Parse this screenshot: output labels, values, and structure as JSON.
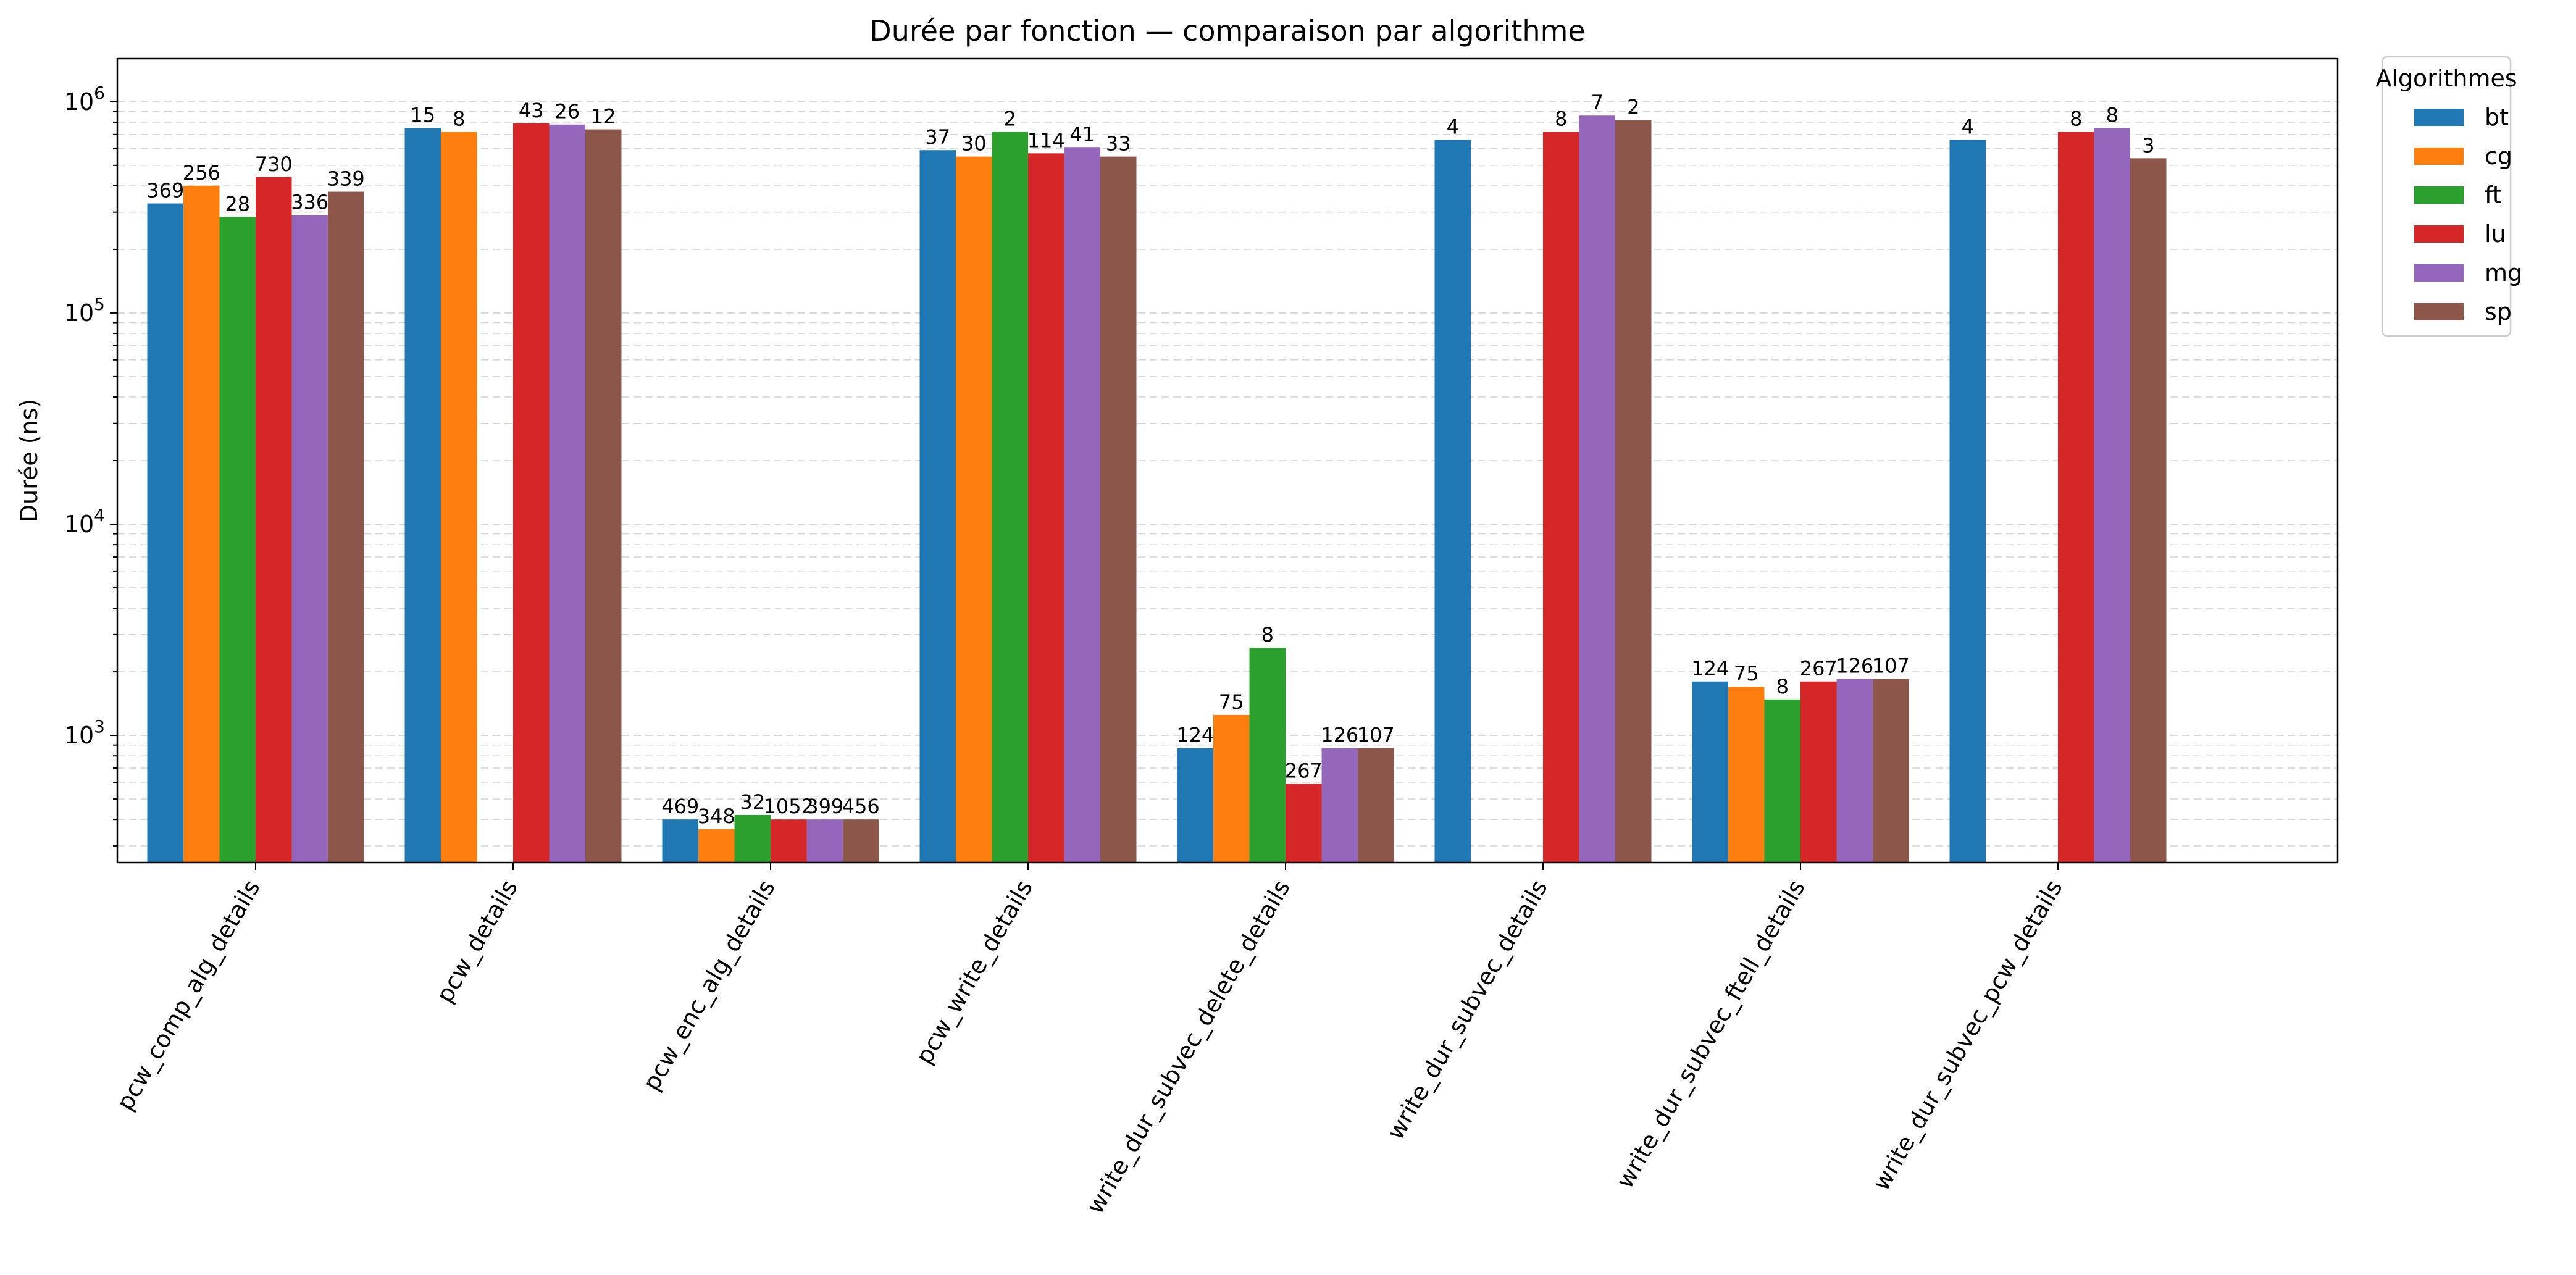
{
  "chart_data": {
    "type": "bar",
    "title": "Durée par fonction — comparaison par algorithme",
    "xlabel": "",
    "ylabel": "Durée (ns)",
    "yscale": "log",
    "ylim": [
      250,
      1600000
    ],
    "grid": "y-major-and-minor-dashed",
    "legend": {
      "title": "Algorithmes",
      "placement": "outside-top-right"
    },
    "yticks": [
      {
        "value": 1000,
        "base": "10",
        "exp": "3"
      },
      {
        "value": 10000,
        "base": "10",
        "exp": "4"
      },
      {
        "value": 100000,
        "base": "10",
        "exp": "5"
      },
      {
        "value": 1000000,
        "base": "10",
        "exp": "6"
      }
    ],
    "categories": [
      "pcw_comp_alg_details",
      "pcw_details",
      "pcw_enc_alg_details",
      "pcw_write_details",
      "write_dur_subvec_delete_details",
      "write_dur_subvec_details",
      "write_dur_subvec_ftell_details",
      "write_dur_subvec_pcw_details"
    ],
    "series": [
      {
        "name": "bt",
        "color": "#1f77b4",
        "values": [
          330000,
          750000,
          400,
          590000,
          870,
          660000,
          1800,
          660000
        ],
        "labels": [
          "369",
          "15",
          "469",
          "37",
          "124",
          "4",
          "124",
          "4"
        ]
      },
      {
        "name": "cg",
        "color": "#ff7f0e",
        "values": [
          400000,
          720000,
          360,
          550000,
          1250,
          null,
          1700,
          null
        ],
        "labels": [
          "256",
          "8",
          "348",
          "30",
          "75",
          "",
          "75",
          ""
        ]
      },
      {
        "name": "ft",
        "color": "#2ca02c",
        "values": [
          285000,
          null,
          420,
          720000,
          2600,
          null,
          1480,
          null
        ],
        "labels": [
          "28",
          "",
          "32",
          "2",
          "8",
          "",
          "8",
          ""
        ]
      },
      {
        "name": "lu",
        "color": "#d62728",
        "values": [
          440000,
          790000,
          400,
          570000,
          590,
          720000,
          1800,
          720000
        ],
        "labels": [
          "730",
          "43",
          "1052",
          "114",
          "267",
          "8",
          "267",
          "8"
        ]
      },
      {
        "name": "mg",
        "color": "#9467bd",
        "values": [
          290000,
          780000,
          400,
          610000,
          870,
          860000,
          1850,
          750000
        ],
        "labels": [
          "336",
          "26",
          "399",
          "41",
          "126",
          "7",
          "126",
          "8"
        ]
      },
      {
        "name": "sp",
        "color": "#8c564b",
        "values": [
          375000,
          740000,
          400,
          550000,
          870,
          820000,
          1850,
          540000
        ],
        "labels": [
          "339",
          "12",
          "456",
          "33",
          "107",
          "2",
          "107",
          "3"
        ]
      }
    ]
  }
}
